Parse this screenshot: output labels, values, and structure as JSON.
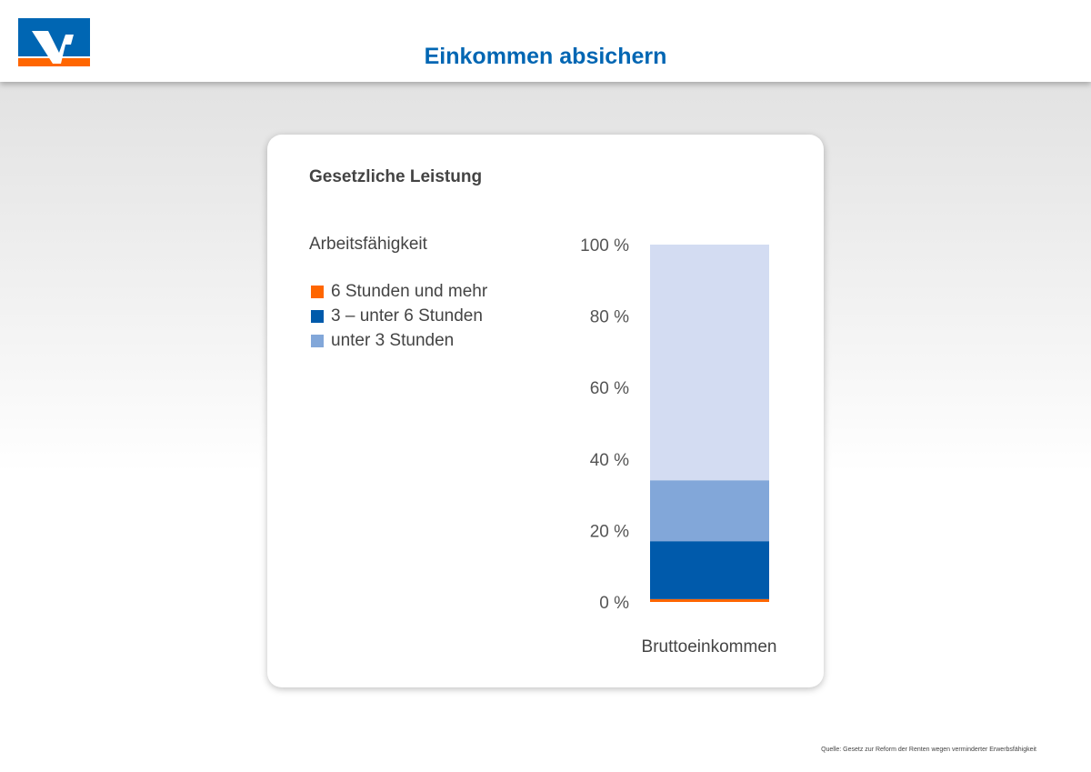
{
  "header": {
    "title": "Einkommen absichern"
  },
  "card": {
    "title": "Gesetzliche Leistung",
    "legend_title": "Arbeitsfähigkeit"
  },
  "source": "Quelle: Gesetz zur Reform der Renten wegen verminderter Erwerbsfähigkeit",
  "colors": {
    "brand_blue": "#0066b3",
    "brand_orange": "#ff6600",
    "remainder": "#d3dcf2"
  },
  "chart_data": {
    "type": "bar",
    "stacked": true,
    "categories": [
      "Bruttoeinkommen"
    ],
    "ylim": [
      0,
      100
    ],
    "yticks": [
      "0 %",
      "20 %",
      "40 %",
      "60 %",
      "80 %",
      "100 %"
    ],
    "series": [
      {
        "name": "6 Stunden und mehr",
        "values": [
          0.8
        ],
        "color": "#ff6600"
      },
      {
        "name": "3 – unter 6 Stunden",
        "values": [
          16.2
        ],
        "color": "#005aab"
      },
      {
        "name": "unter 3 Stunden",
        "values": [
          17
        ],
        "color": "#82a7d9"
      }
    ],
    "remainder_total": 100,
    "xlabel": "Bruttoeinkommen"
  }
}
